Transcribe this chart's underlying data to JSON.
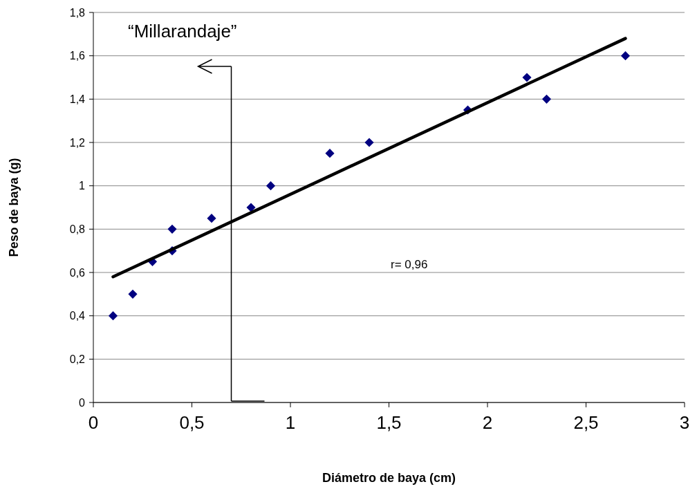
{
  "chart_data": {
    "type": "scatter",
    "xlabel": "Diámetro de baya (cm)",
    "ylabel": "Peso de baya (g)",
    "xlim": [
      0,
      3
    ],
    "xticks": [
      0,
      {
        "value": 0.5,
        "label": "0,5"
      },
      1,
      {
        "value": 1.5,
        "label": "1,5"
      },
      2,
      {
        "value": 2.5,
        "label": "2,5"
      },
      3
    ],
    "ylim": [
      0,
      1.8
    ],
    "yticks": [
      0,
      {
        "value": 0.2,
        "label": "0,2"
      },
      {
        "value": 0.4,
        "label": "0,4"
      },
      {
        "value": 0.6,
        "label": "0,6"
      },
      {
        "value": 0.8,
        "label": "0,8"
      },
      1,
      {
        "value": 1.2,
        "label": "1,2"
      },
      {
        "value": 1.4,
        "label": "1,4"
      },
      {
        "value": 1.6,
        "label": "1,6"
      },
      {
        "value": 1.8,
        "label": "1,8"
      }
    ],
    "grid": "y",
    "marker": "diamond",
    "series": [
      {
        "color": "#000080",
        "x": [
          0.1,
          0.2,
          0.3,
          0.4,
          0.4,
          0.6,
          0.8,
          0.9,
          1.2,
          1.4,
          1.9,
          2.2,
          2.3,
          2.7
        ],
        "values": [
          0.4,
          0.5,
          0.65,
          0.8,
          0.7,
          0.85,
          0.9,
          1.0,
          1.15,
          1.2,
          1.35,
          1.5,
          1.4,
          1.6
        ]
      },
      {
        "type": "line",
        "marker": "none",
        "color": "#000000",
        "x": [
          0.1,
          2.7
        ],
        "values": [
          0.58,
          1.68
        ]
      }
    ],
    "ref_lines": [
      {
        "axis": "x",
        "value": 0.7,
        "label": "“Millarandaje”",
        "color": "#000000"
      }
    ],
    "annotations": [
      "r= 0,96"
    ]
  }
}
